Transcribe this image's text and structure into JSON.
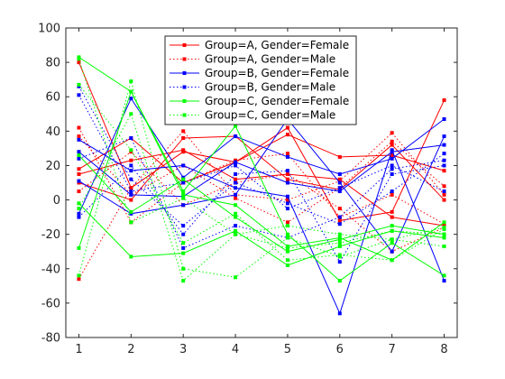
{
  "chart_data": {
    "type": "line",
    "title": "",
    "xlabel": "",
    "ylabel": "",
    "xlim": [
      0.75,
      8.25
    ],
    "ylim": [
      -80,
      100
    ],
    "x": [
      1,
      2,
      3,
      4,
      5,
      6,
      7,
      8
    ],
    "xticks": [
      "1",
      "2",
      "3",
      "4",
      "5",
      "6",
      "7",
      "8"
    ],
    "yticks": [
      "-80",
      "-60",
      "-40",
      "-20",
      "0",
      "20",
      "40",
      "60",
      "80",
      "100"
    ],
    "grid": false,
    "legend_position": "top-center",
    "legend": [
      {
        "label": "Group=A, Gender=Female",
        "color": "#ff0000",
        "dash": "solid"
      },
      {
        "label": "Group=A, Gender=Male",
        "color": "#ff0000",
        "dash": "dotted"
      },
      {
        "label": "Group=B, Gender=Female",
        "color": "#0000ff",
        "dash": "solid"
      },
      {
        "label": "Group=B, Gender=Male",
        "color": "#0000ff",
        "dash": "dotted"
      },
      {
        "label": "Group=C, Gender=Female",
        "color": "#00ff00",
        "dash": "solid"
      },
      {
        "label": "Group=C, Gender=Male",
        "color": "#00ff00",
        "dash": "dotted"
      }
    ],
    "series": [
      {
        "group": 0,
        "values": [
          80,
          7,
          28,
          22,
          42,
          -12,
          -7,
          58
        ]
      },
      {
        "group": 0,
        "values": [
          18,
          36,
          10,
          22,
          38,
          25,
          26,
          17
        ]
      },
      {
        "group": 0,
        "values": [
          15,
          23,
          29,
          12,
          15,
          12,
          -10,
          -15
        ]
      },
      {
        "group": 0,
        "values": [
          10,
          0,
          36,
          37,
          12,
          6,
          32,
          0
        ]
      },
      {
        "group": 1,
        "values": [
          -46,
          7,
          40,
          3,
          0,
          11,
          39,
          3
        ]
      },
      {
        "group": 1,
        "values": [
          42,
          -13,
          10,
          23,
          27,
          -10,
          3,
          -14
        ]
      },
      {
        "group": 1,
        "values": [
          37,
          3,
          20,
          1,
          -13,
          7,
          34,
          8
        ]
      },
      {
        "group": 1,
        "values": [
          5,
          28,
          -3,
          10,
          15,
          -5,
          -30,
          -16
        ]
      },
      {
        "group": 2,
        "values": [
          -8,
          59,
          13,
          37,
          25,
          15,
          24,
          47
        ]
      },
      {
        "group": 2,
        "values": [
          28,
          3,
          2,
          22,
          10,
          5,
          28,
          32
        ]
      },
      {
        "group": 2,
        "values": [
          35,
          17,
          20,
          7,
          2,
          -66,
          29,
          -47
        ]
      },
      {
        "group": 2,
        "values": [
          11,
          -8,
          -3,
          3,
          47,
          10,
          -30,
          37
        ]
      },
      {
        "group": 3,
        "values": [
          -10,
          20,
          -20,
          15,
          17,
          -36,
          15,
          20
        ]
      },
      {
        "group": 3,
        "values": [
          24,
          36,
          -28,
          -15,
          -22,
          -10,
          18,
          23
        ]
      },
      {
        "group": 3,
        "values": [
          66,
          12,
          -15,
          10,
          -2,
          -14,
          5,
          27
        ]
      },
      {
        "group": 3,
        "values": [
          61,
          5,
          10,
          20,
          -5,
          7,
          20,
          5
        ]
      },
      {
        "group": 4,
        "values": [
          83,
          63,
          5,
          43,
          -20,
          -47,
          -25,
          -44
        ]
      },
      {
        "group": 4,
        "values": [
          -2,
          -33,
          -31,
          -18,
          -38,
          -27,
          -18,
          -22
        ]
      },
      {
        "group": 4,
        "values": [
          26,
          -7,
          12,
          -10,
          -30,
          -23,
          -15,
          -20
        ]
      },
      {
        "group": 4,
        "values": [
          -28,
          63,
          3,
          -3,
          -27,
          -22,
          -35,
          -13
        ]
      },
      {
        "group": 5,
        "values": [
          -44,
          69,
          -40,
          -45,
          -22,
          -33,
          -23,
          -27
        ]
      },
      {
        "group": 5,
        "values": [
          -5,
          50,
          -47,
          -20,
          -28,
          -25,
          -18,
          -20
        ]
      },
      {
        "group": 5,
        "values": [
          67,
          29,
          -25,
          -8,
          -35,
          -32,
          -35,
          -17
        ]
      },
      {
        "group": 5,
        "values": [
          82,
          -13,
          1,
          -20,
          -15,
          -20,
          -23,
          -16
        ]
      }
    ]
  }
}
